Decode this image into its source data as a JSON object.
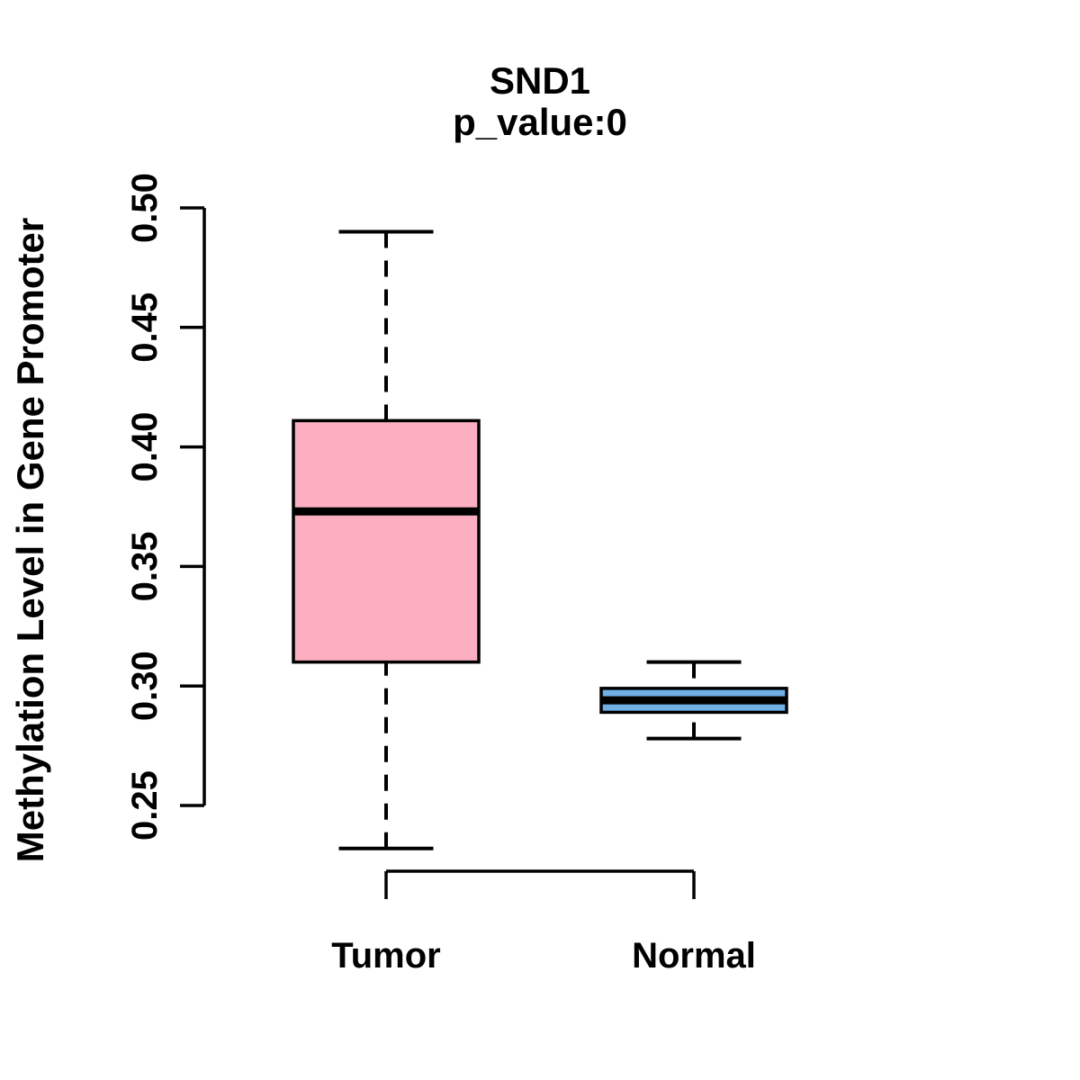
{
  "chart_data": {
    "type": "boxplot",
    "title": "SND1",
    "subtitle": "p_value:0",
    "ylabel": "Methylation Level in Gene Promoter",
    "xlabel": "",
    "categories": [
      "Tumor",
      "Normal"
    ],
    "y_axis": {
      "min": 0.25,
      "max": 0.5,
      "tick_labels": [
        "0.25",
        "0.30",
        "0.35",
        "0.40",
        "0.45",
        "0.50"
      ],
      "grid": false
    },
    "boxes": [
      {
        "category": "Tumor",
        "whisker_low": 0.232,
        "q1": 0.31,
        "median": 0.373,
        "q3": 0.411,
        "whisker_high": 0.49,
        "outliers": [],
        "fill_color": "#FBAFC1"
      },
      {
        "category": "Normal",
        "whisker_low": 0.278,
        "q1": 0.289,
        "median": 0.294,
        "q3": 0.299,
        "whisker_high": 0.31,
        "outliers": [],
        "fill_color": "#6FB1E7"
      }
    ],
    "stroke_color": "#000000",
    "background_color": "#FFFFFF",
    "legend": null
  }
}
